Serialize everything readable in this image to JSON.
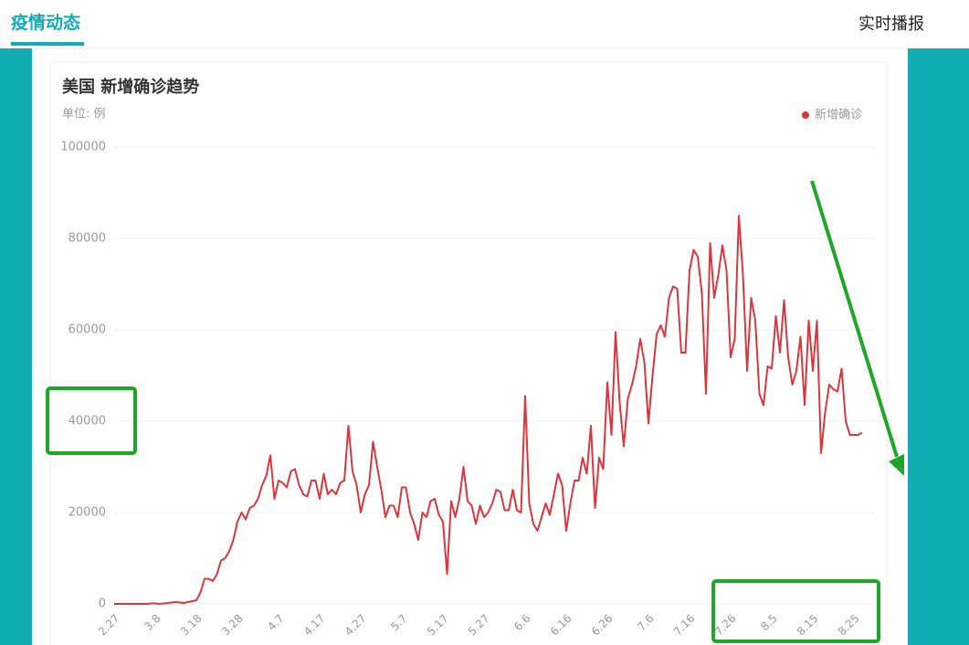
{
  "header": {
    "tabs": [
      "疫情动态",
      "实时播报"
    ]
  },
  "chart_data": {
    "type": "line",
    "title": "美国 新增确诊趋势",
    "subtitle": "单位: 例",
    "legend": "top-right",
    "grid": true,
    "categories": [
      "2.27",
      null,
      null,
      null,
      null,
      null,
      null,
      null,
      null,
      null,
      "3.8",
      null,
      null,
      null,
      null,
      null,
      null,
      null,
      null,
      null,
      "3.18",
      null,
      null,
      null,
      null,
      null,
      null,
      null,
      null,
      null,
      "3.28",
      null,
      null,
      null,
      null,
      null,
      null,
      null,
      null,
      null,
      "4.7",
      null,
      null,
      null,
      null,
      null,
      null,
      null,
      null,
      null,
      "4.17",
      null,
      null,
      null,
      null,
      null,
      null,
      null,
      null,
      null,
      "4.27",
      null,
      null,
      null,
      null,
      null,
      null,
      null,
      null,
      null,
      "5.7",
      null,
      null,
      null,
      null,
      null,
      null,
      null,
      null,
      null,
      "5.17",
      null,
      null,
      null,
      null,
      null,
      null,
      null,
      null,
      null,
      "5.27",
      null,
      null,
      null,
      null,
      null,
      null,
      null,
      null,
      null,
      "6.6",
      null,
      null,
      null,
      null,
      null,
      null,
      null,
      null,
      null,
      "6.16",
      null,
      null,
      null,
      null,
      null,
      null,
      null,
      null,
      null,
      "6.26",
      null,
      null,
      null,
      null,
      null,
      null,
      null,
      null,
      null,
      "7.6",
      null,
      null,
      null,
      null,
      null,
      null,
      null,
      null,
      null,
      "7.16",
      null,
      null,
      null,
      null,
      null,
      null,
      null,
      null,
      null,
      "7.26",
      null,
      null,
      null,
      null,
      null,
      null,
      null,
      null,
      null,
      "8.5",
      null,
      null,
      null,
      null,
      null,
      null,
      null,
      null,
      null,
      "8.15",
      null,
      null,
      null,
      null,
      null,
      null,
      null,
      null,
      null,
      "8.25",
      null,
      null
    ],
    "series": [
      {
        "name": "新增确诊",
        "color": "#d9363e",
        "values": [
          0,
          0,
          0,
          0,
          0,
          0,
          0,
          0,
          0,
          100,
          100,
          0,
          100,
          200,
          300,
          400,
          300,
          200,
          400,
          600,
          800,
          2500,
          5500,
          5500,
          5000,
          6500,
          9500,
          10000,
          11500,
          14000,
          18000,
          20000,
          18500,
          21000,
          21500,
          23000,
          26000,
          28000,
          32500,
          23000,
          27000,
          26500,
          25500,
          29000,
          29500,
          26000,
          24000,
          23500,
          27000,
          27000,
          23000,
          28500,
          24000,
          25000,
          24000,
          26500,
          27000,
          39000,
          29000,
          26000,
          20000,
          24000,
          26000,
          35500,
          30000,
          25000,
          19000,
          21500,
          21500,
          19000,
          25500,
          25500,
          20000,
          17500,
          14000,
          20000,
          19000,
          22500,
          23000,
          19500,
          18000,
          6500,
          22500,
          19000,
          23000,
          30000,
          22500,
          21500,
          17500,
          21500,
          19000,
          20000,
          22000,
          25000,
          24500,
          20500,
          20500,
          25000,
          20500,
          20000,
          45500,
          22000,
          17500,
          16000,
          19000,
          22000,
          19500,
          24000,
          28500,
          26000,
          16000,
          22000,
          27000,
          27000,
          32000,
          28500,
          39000,
          21000,
          32000,
          29500,
          48500,
          37000,
          59500,
          44000,
          34500,
          45000,
          48000,
          52000,
          58000,
          53000,
          39500,
          50000,
          59000,
          61000,
          58500,
          67000,
          69500,
          69000,
          55000,
          55000,
          73000,
          77500,
          76000,
          68000,
          46000,
          79000,
          67000,
          72000,
          78500,
          73000,
          54000,
          58000,
          85000,
          72000,
          51000,
          67000,
          62000,
          46000,
          43500,
          52000,
          51500,
          63000,
          55000,
          66500,
          54000,
          48000,
          51000,
          58500,
          43500,
          62000,
          51000,
          62000,
          33000,
          42000,
          48000,
          47000,
          46500,
          51500,
          40000,
          37000,
          37000,
          37000,
          37500
        ]
      }
    ],
    "ylim": [
      0,
      100000
    ],
    "yticks": [
      0,
      20000,
      40000,
      60000,
      80000,
      100000
    ]
  }
}
